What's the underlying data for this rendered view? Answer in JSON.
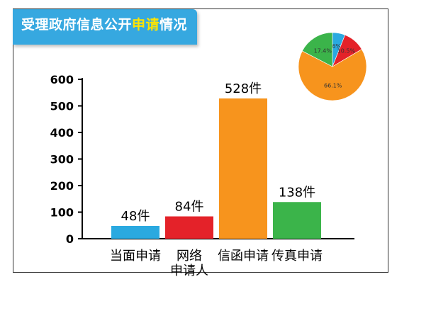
{
  "title": {
    "prefix": "受理政府信息公开",
    "highlight": "申请",
    "suffix": "情况"
  },
  "colors": {
    "banner": "#36a8e0",
    "highlight": "#ffe400"
  },
  "chart_data": [
    {
      "type": "bar",
      "categories": [
        "当面申请",
        "网络\n申请人",
        "信函申请",
        "传真申请"
      ],
      "values": [
        48,
        84,
        528,
        138
      ],
      "data_labels": [
        "48件",
        "84件",
        "528件",
        "138件"
      ],
      "colors": [
        "#2aa9e0",
        "#e42229",
        "#f7941d",
        "#3bb44a"
      ],
      "ylim": [
        0,
        600
      ],
      "yticks": [
        0,
        100,
        200,
        300,
        400,
        500,
        600
      ],
      "grid": false
    },
    {
      "type": "pie",
      "values": [
        6.0,
        10.5,
        66.1,
        17.4
      ],
      "labels": [
        "6%",
        "10.5%",
        "66.1%",
        "17.4%"
      ],
      "colors": [
        "#2aa9e0",
        "#e42229",
        "#f7941d",
        "#3bb44a"
      ]
    }
  ]
}
